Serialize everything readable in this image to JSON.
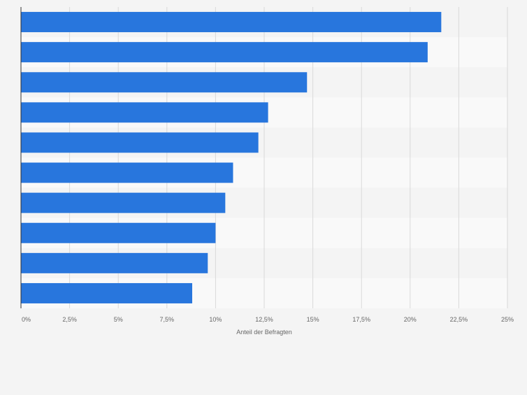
{
  "chart_data": {
    "type": "bar",
    "orientation": "horizontal",
    "categories": [
      "",
      "",
      "",
      "",
      "",
      "",
      "",
      "",
      "",
      ""
    ],
    "values": [
      21.6,
      20.9,
      14.7,
      12.7,
      12.2,
      10.9,
      10.5,
      10.0,
      9.6,
      8.8
    ],
    "xlim": [
      0,
      25
    ],
    "xticks": [
      0,
      2.5,
      5,
      7.5,
      10,
      12.5,
      15,
      17.5,
      20,
      22.5,
      25
    ],
    "xtick_labels": [
      "0%",
      "2,5%",
      "5%",
      "7,5%",
      "10%",
      "12,5%",
      "15%",
      "17,5%",
      "20%",
      "22,5%",
      "25%"
    ],
    "xlabel": "Anteil der Befragten",
    "ylabel": "",
    "title": "",
    "grid": "vertical",
    "legend": "none",
    "colors": {
      "bar": "#2876dd",
      "row_odd": "#f4f4f4",
      "row_even": "#f9f9f9",
      "grid": "#d9d9d9",
      "axis": "#333333",
      "tick_text": "#666666",
      "page_background": "#f4f4f4"
    }
  }
}
